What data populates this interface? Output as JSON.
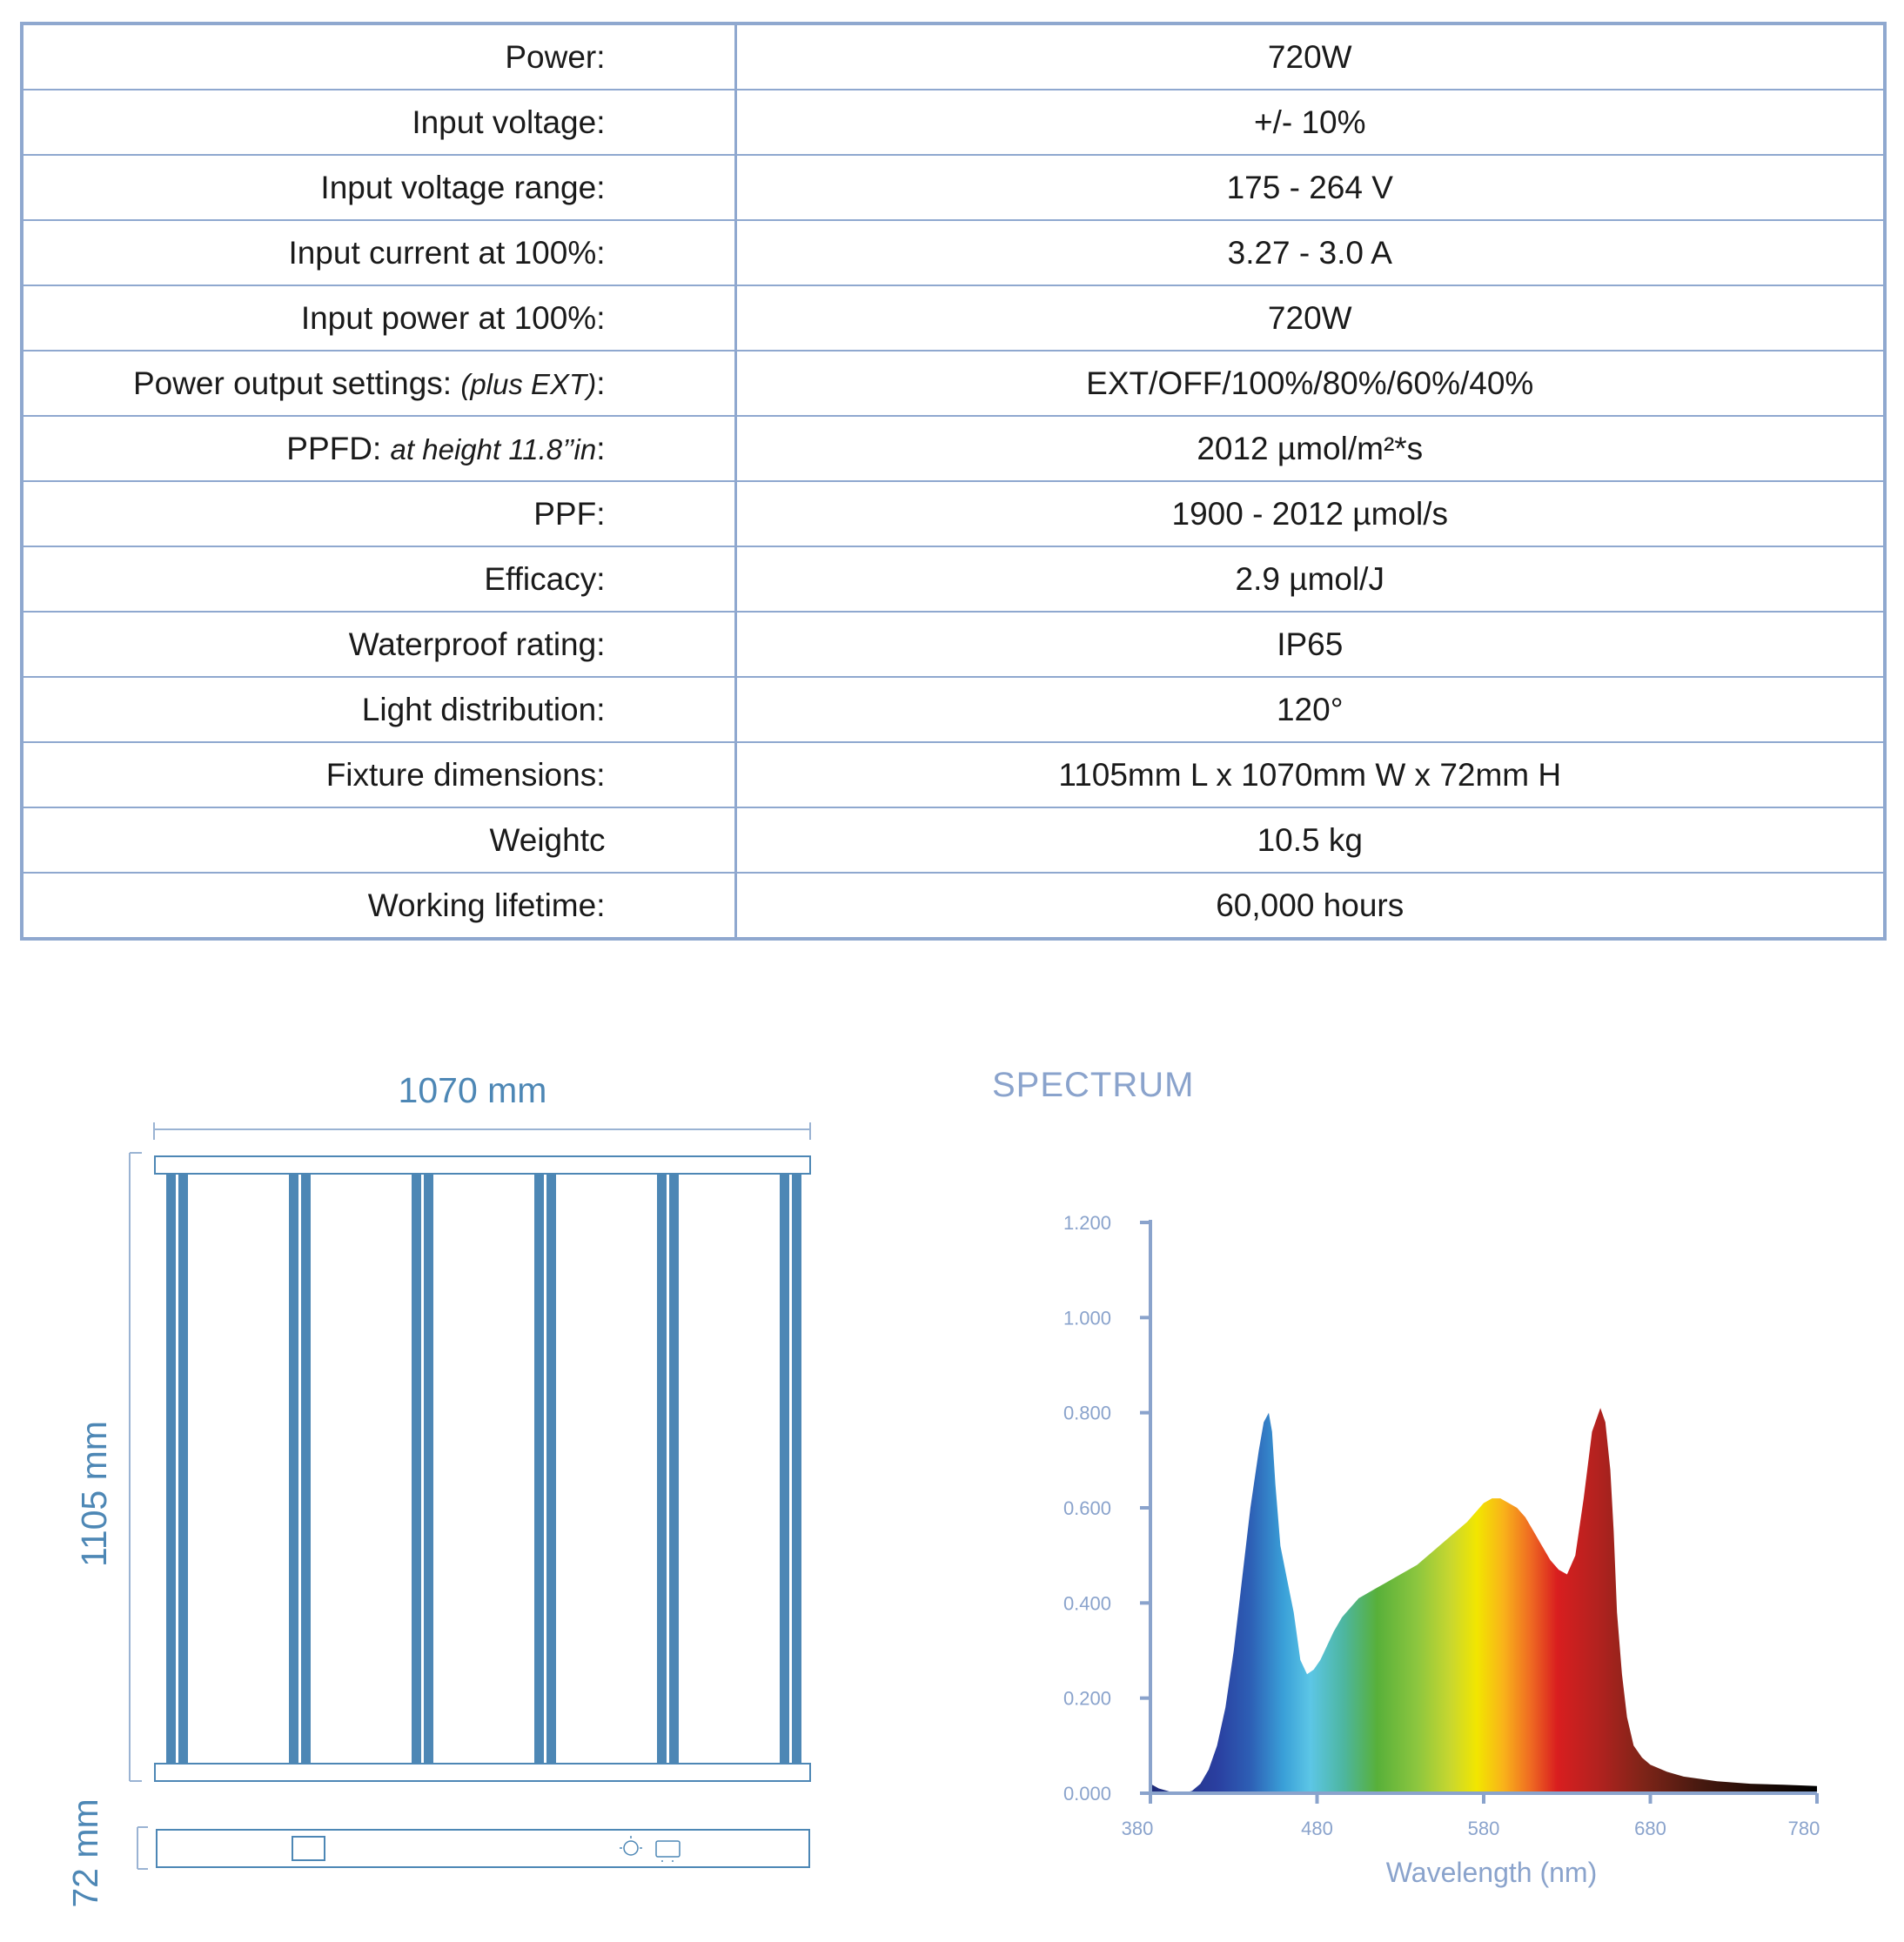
{
  "spec_table": {
    "rows": [
      {
        "label": "Power:",
        "note": "",
        "suffix": "",
        "value": "720W"
      },
      {
        "label": "Input voltage:",
        "note": "",
        "suffix": "",
        "value": "+/- 10%"
      },
      {
        "label": "Input voltage range:",
        "note": "",
        "suffix": "",
        "value": "175 - 264 V"
      },
      {
        "label": "Input current at 100%:",
        "note": "",
        "suffix": "",
        "value": "3.27 - 3.0 A"
      },
      {
        "label": "Input power at 100%:",
        "note": "",
        "suffix": "",
        "value": "720W"
      },
      {
        "label": "Power output settings: ",
        "note": "(plus EXT)",
        "suffix": ":",
        "value": "EXT/OFF/100%/80%/60%/40%"
      },
      {
        "label": "PPFD: ",
        "note": "at height 11.8’’in",
        "suffix": ":",
        "value": "2012 µmol/m²*s"
      },
      {
        "label": "PPF:",
        "note": "",
        "suffix": "",
        "value": "1900 - 2012 µmol/s"
      },
      {
        "label": "Efficacy:",
        "note": "",
        "suffix": "",
        "value": "2.9 µmol/J"
      },
      {
        "label": "Waterproof rating:",
        "note": "",
        "suffix": "",
        "value": "IP65"
      },
      {
        "label": "Light distribution:",
        "note": "",
        "suffix": "",
        "value": "120°"
      },
      {
        "label": "Fixture dimensions:",
        "note": "",
        "suffix": "",
        "value": "1105mm L x 1070mm W x 72mm H"
      },
      {
        "label": "Weightc",
        "note": "",
        "suffix": "",
        "value": "10.5 kg"
      },
      {
        "label": "Working lifetime:",
        "note": "",
        "suffix": "",
        "value": "60,000 hours"
      }
    ]
  },
  "dimensions": {
    "width_label": "1070 mm",
    "length_label": "1105 mm",
    "height_label": "72 mm",
    "bar_count": 6
  },
  "colors": {
    "table_border": "#8fa8cf",
    "dimension_blue": "#4d87b5",
    "chart_axis": "#8aa3cc"
  },
  "chart_data": {
    "type": "area",
    "title": "SPECTRUM",
    "xlabel": "Wavelength (nm)",
    "ylabel": "",
    "xlim": [
      380,
      780
    ],
    "ylim": [
      0,
      1.2
    ],
    "x_ticks": [
      380,
      480,
      580,
      680,
      780
    ],
    "x_tick_labels": [
      "380",
      "480",
      "580",
      "680",
      "780"
    ],
    "y_ticks": [
      0,
      0.2,
      0.4,
      0.6,
      0.8,
      1.0,
      1.2
    ],
    "y_tick_labels": [
      "0.000",
      "0.200",
      "0.400",
      "0.600",
      "0.800",
      "1.000",
      "1.200"
    ],
    "grid": false,
    "fill": "visible spectrum color gradient",
    "series": [
      {
        "x": [
          380,
          385,
          390,
          395,
          400,
          405,
          410,
          415,
          420,
          425,
          430,
          435,
          440,
          445,
          448,
          451,
          453,
          455,
          458,
          462,
          466,
          470,
          474,
          478,
          482,
          486,
          490,
          495,
          500,
          505,
          510,
          515,
          520,
          525,
          530,
          540,
          550,
          560,
          570,
          580,
          585,
          590,
          595,
          600,
          605,
          610,
          615,
          620,
          625,
          630,
          635,
          640,
          645,
          650,
          653,
          656,
          658,
          660,
          663,
          666,
          670,
          675,
          680,
          690,
          700,
          720,
          740,
          760,
          780
        ],
        "values": [
          0.02,
          0.01,
          0.005,
          0.0,
          0.0,
          0.005,
          0.02,
          0.05,
          0.1,
          0.18,
          0.3,
          0.45,
          0.6,
          0.72,
          0.78,
          0.8,
          0.76,
          0.65,
          0.52,
          0.45,
          0.38,
          0.28,
          0.25,
          0.26,
          0.28,
          0.31,
          0.34,
          0.37,
          0.39,
          0.41,
          0.42,
          0.43,
          0.44,
          0.45,
          0.46,
          0.48,
          0.51,
          0.54,
          0.57,
          0.61,
          0.62,
          0.62,
          0.61,
          0.6,
          0.58,
          0.55,
          0.52,
          0.49,
          0.47,
          0.46,
          0.5,
          0.62,
          0.76,
          0.81,
          0.78,
          0.68,
          0.55,
          0.38,
          0.25,
          0.16,
          0.1,
          0.075,
          0.06,
          0.045,
          0.035,
          0.025,
          0.02,
          0.018,
          0.015
        ]
      }
    ]
  }
}
